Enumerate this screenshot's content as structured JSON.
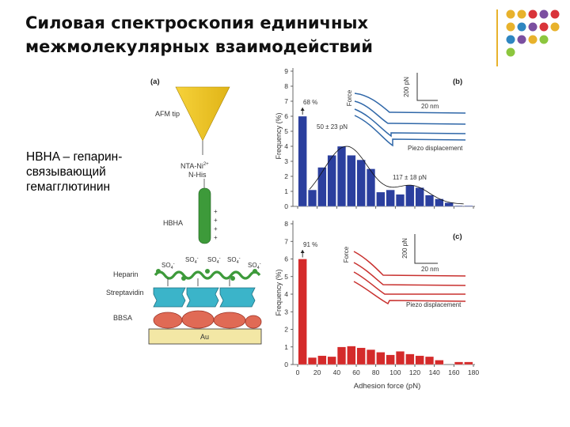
{
  "slide": {
    "title_lines": [
      "Силовая спектроскопия единичных",
      "межмолекулярных взаимодействий"
    ],
    "note_lines": [
      "HBHA – гепарин-",
      "связывающий",
      "гемагглютинин"
    ]
  },
  "decor": {
    "dot_colors": [
      [
        "#e8b22c",
        "#e8b22c",
        "#d9343a",
        "#7b4fa0",
        "#d9343a"
      ],
      [
        "#e8b22c",
        "#2e86c1",
        "#7b4fa0",
        "#d9343a",
        "#e8b22c"
      ],
      [
        "#2e86c1",
        "#7b4fa0",
        "#e8b22c",
        "#8cc63e"
      ],
      [
        "#8cc63e"
      ]
    ],
    "rule_color": "#e8b22c"
  },
  "figure": {
    "panel_a": {
      "label": "(a)",
      "afm_tip": "AFM tip",
      "nta_line1": "NTA-Ni",
      "nta_sup": "2+",
      "nta_line2": "N-His",
      "hbha": "HBHA",
      "charges": [
        "+",
        "+",
        "+",
        "+"
      ],
      "heparin": "Heparin",
      "so4": [
        "SO",
        "SO",
        "SO",
        "SO",
        "SO"
      ],
      "so4_sub": "4",
      "so4_sup": "-",
      "streptavidin": "Streptavidin",
      "bbsa": "BBSA",
      "au": "Au"
    },
    "panel_b": {
      "label": "(b)",
      "annotations": {
        "first_bin": "68 %",
        "peak1": "50 ± 23 pN",
        "peak2": "117 ± 18 pN"
      },
      "inset": {
        "y_label": "Force",
        "y_scale": "200 pN",
        "x_scale": "20 nm",
        "x_label": "Piezo displacement"
      }
    },
    "panel_c": {
      "label": "(c)",
      "annotations": {
        "first_bin": "91 %"
      },
      "inset": {
        "y_label": "Force",
        "y_scale": "200 pN",
        "x_scale": "20 nm",
        "x_label": "Piezo displacement"
      }
    }
  },
  "chart_data": [
    {
      "type": "bar",
      "panel": "(b)",
      "color": "#2b3f9e",
      "ylabel": "Frequency (%)",
      "yticks": [
        "0",
        "1",
        "2",
        "3",
        "4",
        "5",
        "6",
        "7",
        "8",
        "9"
      ],
      "ylim": [
        0,
        9
      ],
      "xlim": [
        0,
        180
      ],
      "bin_width": 10,
      "bin_starts": [
        0,
        10,
        20,
        30,
        40,
        50,
        60,
        70,
        80,
        90,
        100,
        110,
        120,
        130,
        140,
        150,
        160,
        170
      ],
      "values": [
        6.0,
        1.1,
        2.6,
        3.4,
        4.0,
        3.4,
        3.1,
        2.5,
        0.95,
        1.1,
        0.8,
        1.4,
        1.25,
        0.75,
        0.5,
        0.25,
        0.05,
        0.05
      ],
      "fit_peaks_pN": [
        50,
        117
      ]
    },
    {
      "type": "bar",
      "panel": "(c)",
      "color": "#d42a2a",
      "ylabel": "Frequency (%)",
      "xlabel": "Adhesion force (pN)",
      "yticks": [
        "0",
        "1",
        "2",
        "3",
        "4",
        "5",
        "6",
        "7",
        "8"
      ],
      "xticks": [
        "0",
        "20",
        "40",
        "60",
        "80",
        "100",
        "120",
        "140",
        "160",
        "180"
      ],
      "ylim": [
        0,
        8
      ],
      "xlim": [
        0,
        180
      ],
      "bin_width": 10,
      "bin_starts": [
        0,
        10,
        20,
        30,
        40,
        50,
        60,
        70,
        80,
        90,
        100,
        110,
        120,
        130,
        140,
        150,
        160,
        170
      ],
      "values": [
        6.0,
        0.4,
        0.5,
        0.45,
        1.0,
        1.05,
        0.95,
        0.85,
        0.7,
        0.55,
        0.75,
        0.6,
        0.5,
        0.45,
        0.25,
        0.0,
        0.15,
        0.15
      ]
    }
  ]
}
